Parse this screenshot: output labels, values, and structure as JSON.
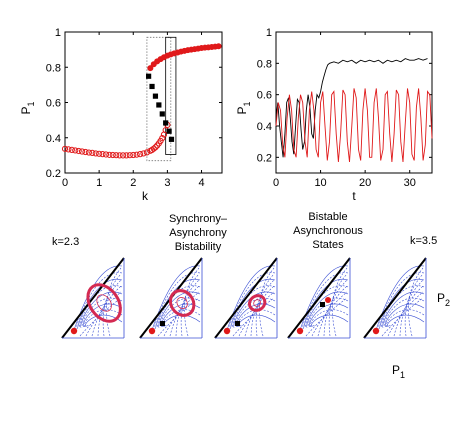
{
  "chart_data": [
    {
      "type": "scatter",
      "panel": "top-left",
      "xlabel": "k",
      "ylabel": "P",
      "ylabel_sub": "1",
      "xlim": [
        0,
        4.6
      ],
      "ylim": [
        0.2,
        1.0
      ],
      "xticks": [
        "0",
        "1",
        "2",
        "3",
        "4"
      ],
      "yticks": [
        "0.2",
        "0.4",
        "0.6",
        "0.8",
        "1"
      ],
      "series": [
        {
          "marker": "open-circle",
          "color": "#e0191a",
          "x": [
            0.0,
            0.1,
            0.2,
            0.3,
            0.4,
            0.5,
            0.6,
            0.7,
            0.8,
            0.9,
            1.0,
            1.1,
            1.2,
            1.3,
            1.4,
            1.5,
            1.6,
            1.7,
            1.8,
            1.9,
            2.0,
            2.1,
            2.2,
            2.3,
            2.4,
            2.5,
            2.55,
            2.6,
            2.65,
            2.7,
            2.75,
            2.8,
            2.85,
            2.9,
            2.95,
            3.0
          ],
          "y": [
            0.337,
            0.334,
            0.331,
            0.328,
            0.325,
            0.322,
            0.319,
            0.316,
            0.314,
            0.311,
            0.309,
            0.307,
            0.305,
            0.303,
            0.302,
            0.301,
            0.3,
            0.3,
            0.3,
            0.301,
            0.302,
            0.304,
            0.307,
            0.311,
            0.317,
            0.326,
            0.331,
            0.338,
            0.346,
            0.356,
            0.368,
            0.382,
            0.398,
            0.418,
            0.443,
            0.473
          ]
        },
        {
          "marker": "filled-circle",
          "color": "#e0191a",
          "x": [
            2.5,
            2.6,
            2.7,
            2.8,
            2.9,
            3.0,
            3.1,
            3.2,
            3.3,
            3.4,
            3.5,
            3.6,
            3.7,
            3.8,
            3.9,
            4.0,
            4.1,
            4.2,
            4.3,
            4.4,
            4.5
          ],
          "y": [
            0.795,
            0.817,
            0.833,
            0.846,
            0.857,
            0.866,
            0.873,
            0.879,
            0.884,
            0.889,
            0.893,
            0.897,
            0.9,
            0.903,
            0.906,
            0.909,
            0.911,
            0.913,
            0.915,
            0.917,
            0.919
          ]
        },
        {
          "marker": "filled-square",
          "color": "#000000",
          "x": [
            2.45,
            2.55,
            2.65,
            2.75,
            2.85,
            2.95,
            3.05,
            3.12
          ],
          "y": [
            0.749,
            0.691,
            0.636,
            0.586,
            0.535,
            0.484,
            0.437,
            0.391
          ]
        }
      ],
      "regions": [
        {
          "style": "dotted",
          "x": [
            2.4,
            3.1
          ],
          "y": [
            0.27,
            0.97
          ]
        },
        {
          "style": "solid",
          "x": [
            2.95,
            3.25
          ],
          "y": [
            0.305,
            0.97
          ]
        }
      ]
    },
    {
      "type": "line",
      "panel": "top-right",
      "xlabel": "t",
      "ylabel": "P",
      "ylabel_sub": "1",
      "xlim": [
        0,
        35
      ],
      "ylim": [
        0.1,
        1.0
      ],
      "xticks": [
        "0",
        "10",
        "20",
        "30"
      ],
      "yticks": [
        "0.2",
        "0.4",
        "0.6",
        "0.8",
        "1"
      ],
      "series": [
        {
          "color": "#000000",
          "x": [
            0,
            0.4,
            0.8,
            1.2,
            1.6,
            2.0,
            2.4,
            2.8,
            3.2,
            3.6,
            4.0,
            4.4,
            4.8,
            5.2,
            5.6,
            6.0,
            6.4,
            6.8,
            7.2,
            7.6,
            8.0,
            8.4,
            8.8,
            9.2,
            9.6,
            10.0,
            10.4,
            10.8,
            11.2,
            11.6,
            12.0,
            13.0,
            14.0,
            15.0,
            16.0,
            17.0,
            18.0,
            19.0,
            20.0,
            21.0,
            22.0,
            23.0,
            24.0,
            25.0,
            26.0,
            27.0,
            28.0,
            29.0,
            30.0,
            31.0,
            32.0,
            33.0,
            34.0
          ],
          "y": [
            0.45,
            0.55,
            0.4,
            0.3,
            0.2,
            0.35,
            0.55,
            0.58,
            0.45,
            0.3,
            0.22,
            0.4,
            0.57,
            0.55,
            0.38,
            0.25,
            0.3,
            0.5,
            0.6,
            0.52,
            0.35,
            0.32,
            0.5,
            0.6,
            0.58,
            0.62,
            0.68,
            0.72,
            0.76,
            0.79,
            0.8,
            0.81,
            0.8,
            0.82,
            0.81,
            0.82,
            0.8,
            0.82,
            0.81,
            0.82,
            0.81,
            0.82,
            0.8,
            0.82,
            0.81,
            0.82,
            0.81,
            0.83,
            0.82,
            0.82,
            0.83,
            0.82,
            0.83
          ]
        },
        {
          "color": "#e0191a",
          "x": [
            0,
            0.5,
            1.0,
            1.5,
            2.0,
            2.5,
            3.0,
            3.5,
            4.0,
            4.5,
            5.0,
            5.5,
            6.0,
            6.5,
            7.0,
            7.5,
            8.0,
            8.5,
            9.0,
            9.5,
            10.0,
            10.5,
            11.0,
            11.5,
            12.0,
            12.5,
            13.0,
            13.5,
            14.0,
            14.5,
            15.0,
            15.5,
            16.0,
            16.5,
            17.0,
            17.5,
            18.0,
            18.5,
            19.0,
            19.5,
            20.0,
            20.5,
            21.0,
            21.5,
            22.0,
            22.5,
            23.0,
            23.5,
            24.0,
            24.5,
            25.0,
            25.5,
            26.0,
            26.5,
            27.0,
            27.5,
            28.0,
            28.5,
            29.0,
            29.5,
            30.0,
            30.5,
            31.0,
            31.5,
            32.0,
            32.5,
            33.0,
            33.5,
            34.0,
            34.5,
            35.0
          ],
          "y": [
            0.4,
            0.55,
            0.5,
            0.28,
            0.2,
            0.45,
            0.6,
            0.5,
            0.25,
            0.2,
            0.45,
            0.6,
            0.55,
            0.3,
            0.2,
            0.5,
            0.62,
            0.5,
            0.25,
            0.2,
            0.55,
            0.62,
            0.4,
            0.18,
            0.3,
            0.6,
            0.62,
            0.35,
            0.17,
            0.35,
            0.63,
            0.6,
            0.3,
            0.17,
            0.4,
            0.64,
            0.58,
            0.25,
            0.18,
            0.5,
            0.64,
            0.5,
            0.2,
            0.2,
            0.55,
            0.64,
            0.45,
            0.18,
            0.25,
            0.6,
            0.62,
            0.35,
            0.17,
            0.35,
            0.63,
            0.6,
            0.3,
            0.17,
            0.42,
            0.64,
            0.55,
            0.22,
            0.18,
            0.52,
            0.64,
            0.45,
            0.18,
            0.28,
            0.62,
            0.6,
            0.32
          ]
        }
      ]
    },
    {
      "type": "diagram",
      "panel": "bottom-phase-portraits",
      "labels": {
        "left": "k=2.3",
        "mid1_line1": "Synchrony–",
        "mid1_line2": "Asynchrony",
        "mid1_line3": "Bistability",
        "mid2_line1": "Bistable",
        "mid2_line2": "Asynchronous",
        "mid2_line3": "States",
        "right": "k=3.5",
        "p2": "P",
        "p2_sub": "2",
        "p1": "P",
        "p1_sub": "1"
      },
      "panels": [
        {
          "cycle": "large",
          "dots": [
            "red-vertex"
          ],
          "black": []
        },
        {
          "cycle": "medium",
          "dots": [
            "red-vertex"
          ],
          "black": [
            "square-inner"
          ]
        },
        {
          "cycle": "small",
          "dots": [
            "red-vertex"
          ],
          "black": [
            "square-inner"
          ]
        },
        {
          "cycle": "none",
          "dots": [
            "red-vertex",
            "red-upper"
          ],
          "black": [
            "square-upper"
          ]
        },
        {
          "cycle": "none",
          "dots": [
            "red-vertex"
          ],
          "black": []
        }
      ],
      "colors": {
        "flow": "#3a4fd4",
        "cycle": "#d42a52",
        "stable": "#e0191a",
        "saddle": "#000000"
      }
    }
  ]
}
